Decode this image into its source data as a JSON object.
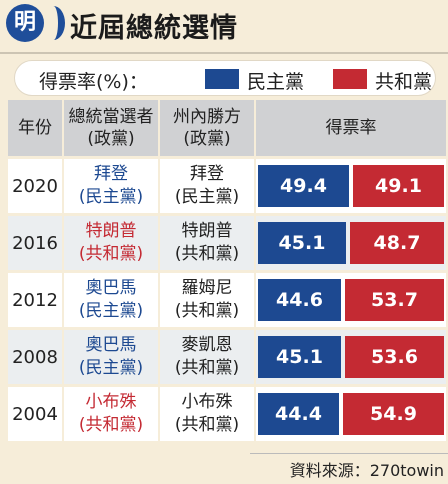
{
  "header": {
    "logo": "明",
    "title": "近屆總統選情"
  },
  "legend": {
    "label": "得票率(%)：",
    "dem": {
      "name": "民主黨",
      "color": "#1d4991"
    },
    "rep": {
      "name": "共和黨",
      "color": "#c42a33"
    }
  },
  "table": {
    "headers": {
      "year": "年份",
      "winner": [
        "總統當選者",
        "(政黨)"
      ],
      "state": [
        "州內勝方",
        "(政黨)"
      ],
      "share": "得票率"
    }
  },
  "chart_data": {
    "type": "bar",
    "categories": [
      "2020",
      "2016",
      "2012",
      "2008",
      "2004"
    ],
    "series": [
      {
        "name": "民主黨",
        "values": [
          49.4,
          45.1,
          44.6,
          45.1,
          44.4
        ]
      },
      {
        "name": "共和黨",
        "values": [
          49.1,
          48.7,
          53.7,
          53.6,
          54.9
        ]
      }
    ],
    "rows": [
      {
        "year": "2020",
        "winner": "拜登",
        "winner_party": "(民主黨)",
        "winner_side": "dem",
        "state_winner": "拜登",
        "state_party": "(民主黨)",
        "dem": 49.4,
        "rep": 49.1
      },
      {
        "year": "2016",
        "winner": "特朗普",
        "winner_party": "(共和黨)",
        "winner_side": "rep",
        "state_winner": "特朗普",
        "state_party": "(共和黨)",
        "dem": 45.1,
        "rep": 48.7
      },
      {
        "year": "2012",
        "winner": "奧巴馬",
        "winner_party": "(民主黨)",
        "winner_side": "dem",
        "state_winner": "羅姆尼",
        "state_party": "(共和黨)",
        "dem": 44.6,
        "rep": 53.7
      },
      {
        "year": "2008",
        "winner": "奧巴馬",
        "winner_party": "(民主黨)",
        "winner_side": "dem",
        "state_winner": "麥凱恩",
        "state_party": "(共和黨)",
        "dem": 45.1,
        "rep": 53.6
      },
      {
        "year": "2004",
        "winner": "小布殊",
        "winner_party": "(共和黨)",
        "winner_side": "rep",
        "state_winner": "小布殊",
        "state_party": "(共和黨)",
        "dem": 44.4,
        "rep": 54.9
      }
    ]
  },
  "source": "資料來源：270towin"
}
